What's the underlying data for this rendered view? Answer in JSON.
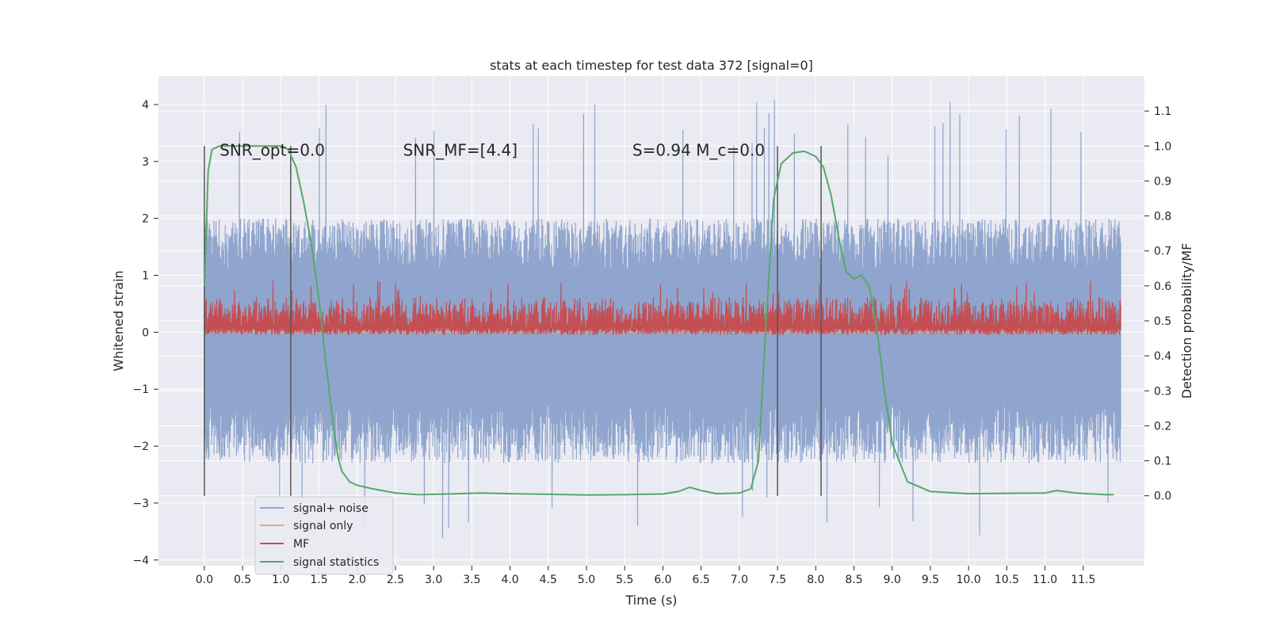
{
  "chart_data": {
    "type": "line",
    "title": "stats at each timestep for test data 372 [signal=0]",
    "xlabel": "Time (s)",
    "ylabel": "Whitened strain",
    "ylabel_right": "Detection probability/MF",
    "xlim": [
      -0.6,
      12.3
    ],
    "ylim": [
      -4.1,
      4.5
    ],
    "ylim_right": [
      -0.2,
      1.2
    ],
    "x_ticks": [
      "0.0",
      "0.5",
      "1.0",
      "1.5",
      "2.0",
      "2.5",
      "3.0",
      "3.5",
      "4.0",
      "4.5",
      "5.0",
      "5.5",
      "6.0",
      "6.5",
      "7.0",
      "7.5",
      "8.0",
      "8.5",
      "9.0",
      "9.5",
      "10.0",
      "10.5",
      "11.0",
      "11.5"
    ],
    "y_ticks": [
      -4,
      -3,
      -2,
      -1,
      0,
      1,
      2,
      3,
      4
    ],
    "y_tick_labels": [
      "−4",
      "−3",
      "−2",
      "−1",
      "0",
      "1",
      "2",
      "3",
      "4"
    ],
    "y_ticks_right": [
      "0.0",
      "0.1",
      "0.2",
      "0.3",
      "0.4",
      "0.5",
      "0.6",
      "0.7",
      "0.8",
      "0.9",
      "1.0",
      "1.1"
    ],
    "grid": true,
    "legend_position": "bottom-left",
    "annotations": [
      {
        "text": "SNR_opt=0.0",
        "x": 0.2,
        "y": 3.2
      },
      {
        "text": "SNR_MF=[4.4]",
        "x": 2.6,
        "y": 3.2
      },
      {
        "text": "S=0.94   M_c=0.0",
        "x": 5.6,
        "y": 3.2
      }
    ],
    "vertical_markers_x": [
      0.0,
      1.13,
      7.5,
      8.07
    ],
    "series": [
      {
        "name": "signal+ noise",
        "color": "#8fa5cd",
        "axis": "left",
        "band": [
          -2.3,
          2.0
        ],
        "peak_max": 4.1,
        "peak_min": -3.7
      },
      {
        "name": "signal only",
        "color": "#e8a688",
        "axis": "left",
        "value": 0.0
      },
      {
        "name": "MF",
        "color": "#c44e52",
        "axis": "right",
        "band": [
          0.47,
          0.55
        ],
        "peak_max": 0.62
      },
      {
        "name": "signal statistics",
        "color": "#55a868",
        "axis": "right",
        "x": [
          0.0,
          0.05,
          0.1,
          0.2,
          0.3,
          0.5,
          0.8,
          1.0,
          1.1,
          1.2,
          1.3,
          1.4,
          1.5,
          1.6,
          1.7,
          1.75,
          1.8,
          1.9,
          2.0,
          2.2,
          2.5,
          2.8,
          3.2,
          3.6,
          4.0,
          5.0,
          5.5,
          6.0,
          6.2,
          6.35,
          6.5,
          6.7,
          7.0,
          7.15,
          7.25,
          7.35,
          7.45,
          7.55,
          7.7,
          7.85,
          8.0,
          8.1,
          8.2,
          8.3,
          8.4,
          8.5,
          8.6,
          8.7,
          8.8,
          8.9,
          9.0,
          9.2,
          9.5,
          10.0,
          11.0,
          11.15,
          11.4,
          11.8,
          11.9
        ],
        "y": [
          0.6,
          0.93,
          0.99,
          1.0,
          1.0,
          1.0,
          1.0,
          1.0,
          0.99,
          0.94,
          0.84,
          0.72,
          0.56,
          0.36,
          0.18,
          0.11,
          0.07,
          0.04,
          0.03,
          0.02,
          0.008,
          0.003,
          0.005,
          0.008,
          0.006,
          0.002,
          0.003,
          0.005,
          0.012,
          0.024,
          0.015,
          0.006,
          0.008,
          0.02,
          0.1,
          0.5,
          0.85,
          0.95,
          0.98,
          0.985,
          0.97,
          0.94,
          0.86,
          0.74,
          0.64,
          0.62,
          0.63,
          0.6,
          0.48,
          0.3,
          0.15,
          0.04,
          0.012,
          0.006,
          0.008,
          0.015,
          0.008,
          0.003,
          0.003
        ]
      }
    ]
  }
}
